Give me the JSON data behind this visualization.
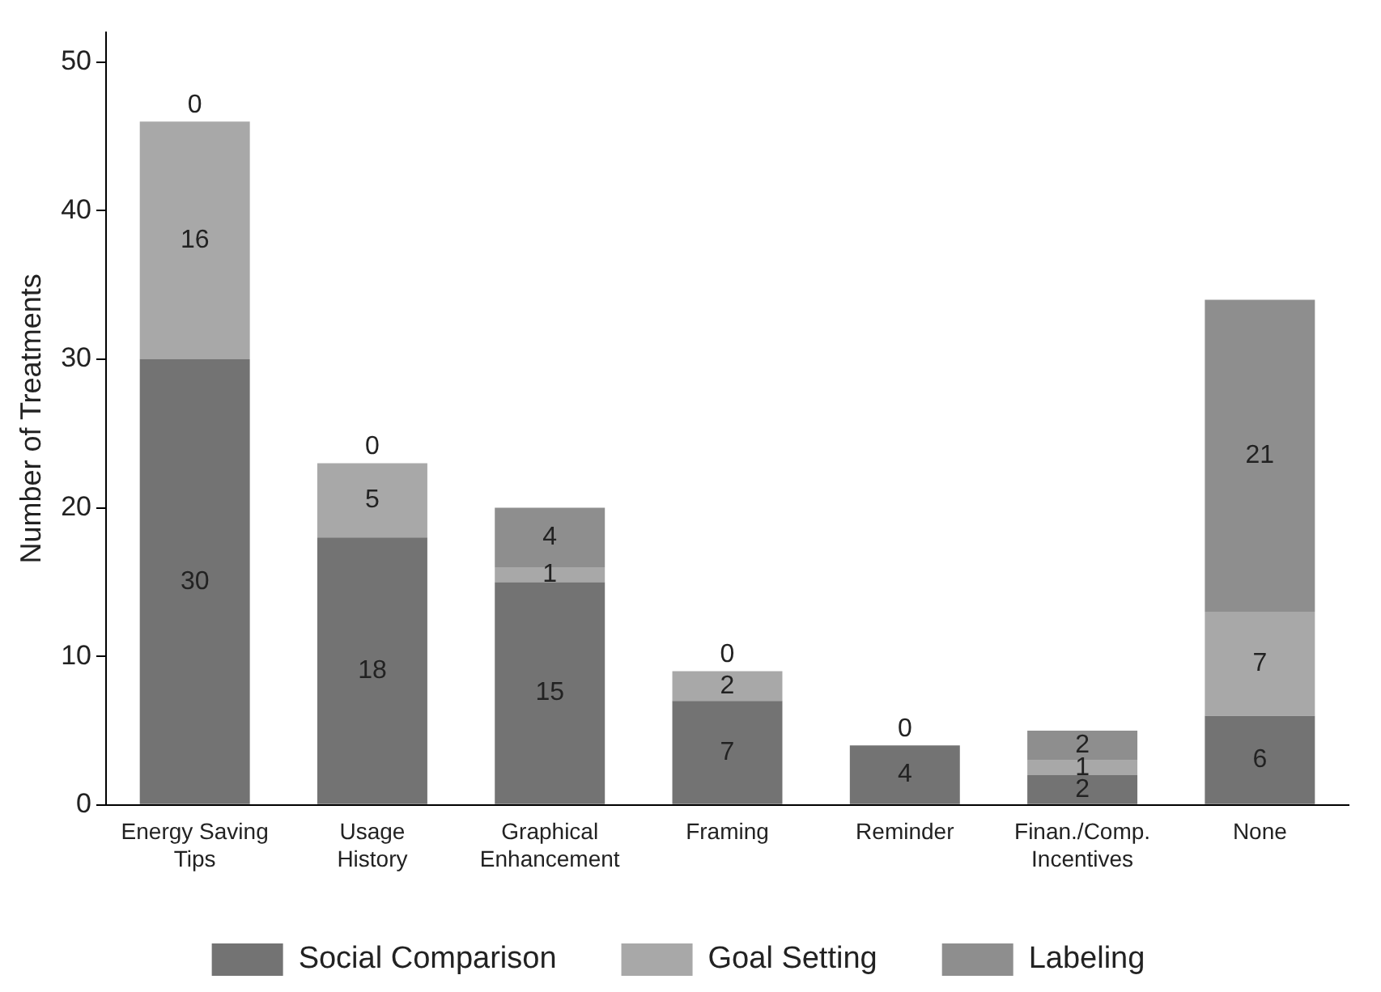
{
  "chart_data": {
    "type": "bar",
    "stacked": true,
    "ylabel": "Number of Treatments",
    "categories": [
      "Energy Saving Tips",
      "Usage History",
      "Graphical Enhancement",
      "Framing",
      "Reminder",
      "Finan./Comp. Incentives",
      "None"
    ],
    "series": [
      {
        "name": "Social Comparison",
        "color": "#737373",
        "values": [
          30,
          18,
          15,
          7,
          4,
          2,
          6
        ]
      },
      {
        "name": "Goal Setting",
        "color": "#a8a8a8",
        "values": [
          16,
          5,
          1,
          2,
          0,
          1,
          7
        ]
      },
      {
        "name": "Labeling",
        "color": "#8e8e8e",
        "values": [
          0,
          0,
          4,
          0,
          null,
          2,
          21
        ]
      }
    ],
    "ylim": [
      0,
      52
    ],
    "yticks": [
      0,
      10,
      20,
      30,
      40,
      50
    ],
    "grid": false,
    "legend": "bottom",
    "data_labels": true
  }
}
